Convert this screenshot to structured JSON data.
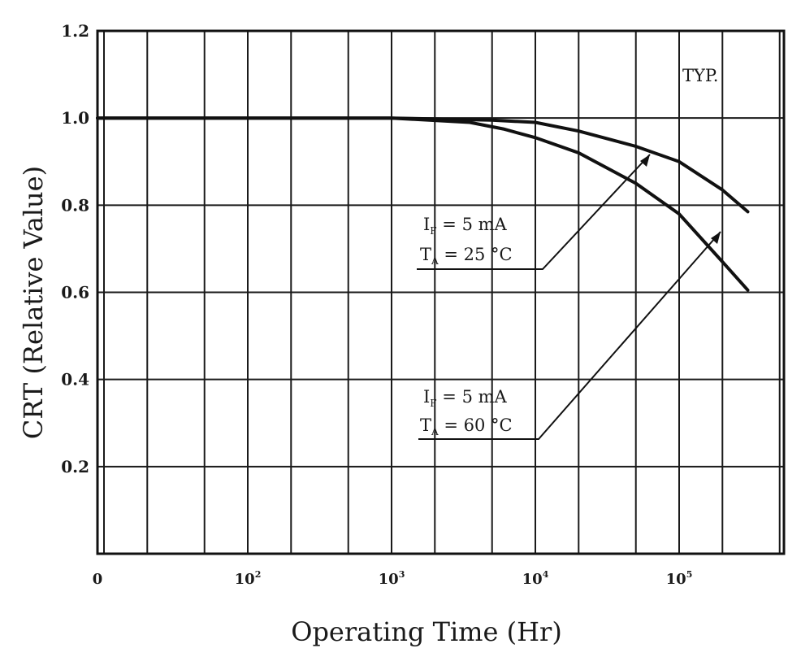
{
  "chart_data": {
    "type": "line",
    "title": "",
    "xlabel": "Operating Time (Hr)",
    "ylabel": "CRT (Relative Value)",
    "xscale": "log",
    "ylim": [
      0,
      1.2
    ],
    "y_ticks": [
      "0.2",
      "0.4",
      "0.6",
      "0.8",
      "1.0",
      "1.2"
    ],
    "x_ticks": [
      {
        "value": 0,
        "label": "0",
        "exp": ""
      },
      {
        "value": 100,
        "label": "10",
        "exp": "2"
      },
      {
        "value": 1000,
        "label": "10",
        "exp": "3"
      },
      {
        "value": 10000,
        "label": "10",
        "exp": "4"
      },
      {
        "value": 100000,
        "label": "10",
        "exp": "5"
      }
    ],
    "grid": true,
    "annotation": "TYP.",
    "series": [
      {
        "name": "IF = 5 mA, TA = 25°C",
        "x": [
          10,
          1000,
          5000,
          10000,
          20000,
          50000,
          100000,
          200000,
          300000
        ],
        "y": [
          1.0,
          1.0,
          0.995,
          0.99,
          0.97,
          0.935,
          0.9,
          0.835,
          0.785
        ]
      },
      {
        "name": "IF = 5 mA, TA = 60°C",
        "x": [
          10,
          1000,
          3500,
          6000,
          10000,
          20000,
          50000,
          100000,
          200000,
          300000
        ],
        "y": [
          1.0,
          1.0,
          0.99,
          0.975,
          0.955,
          0.92,
          0.85,
          0.78,
          0.67,
          0.605
        ]
      }
    ],
    "labels": [
      {
        "current_sym": "I",
        "current_sub": "F",
        "current_val": " = 5 mA",
        "temp_sym": "T",
        "temp_sub": "A",
        "temp_val": " =  25 °C"
      },
      {
        "current_sym": "I",
        "current_sub": "F",
        "current_val": " = 5 mA",
        "temp_sym": "T",
        "temp_sub": "A",
        "temp_val": " =  60 °C"
      }
    ]
  }
}
